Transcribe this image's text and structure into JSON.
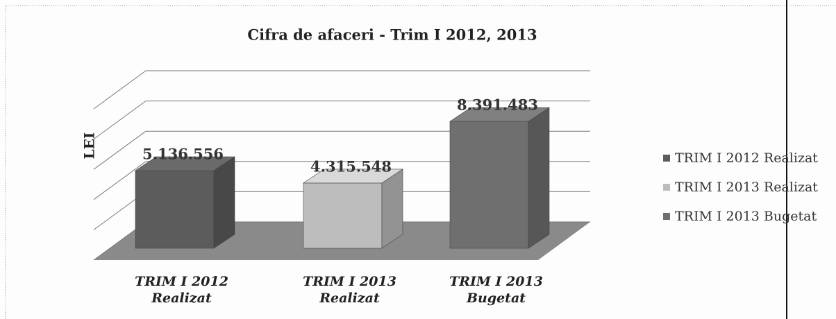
{
  "chart_data": {
    "type": "bar3d",
    "title": "Cifra de afaceri - Trim I 2012, 2013",
    "y_label": "LEI",
    "categories": [
      "TRIM I 2012 Realizat",
      "TRIM I 2013 Realizat",
      "TRIM I 2013 Bugetat"
    ],
    "series": [
      {
        "name": "TRIM I 2012 Realizat",
        "color": "#5c5c5c"
      },
      {
        "name": "TRIM I 2013 Realizat",
        "color": "#bdbdbd"
      },
      {
        "name": "TRIM I 2013 Bugetat",
        "color": "#6f6f6f"
      }
    ],
    "values": [
      5136556,
      4315548,
      8391483
    ],
    "value_labels": [
      "5.136.556",
      "4.315.548",
      "8.391.483"
    ],
    "ylim": [
      0,
      10000000
    ],
    "yticks": [
      0,
      2000000,
      4000000,
      6000000,
      8000000,
      10000000
    ],
    "grid": true
  }
}
